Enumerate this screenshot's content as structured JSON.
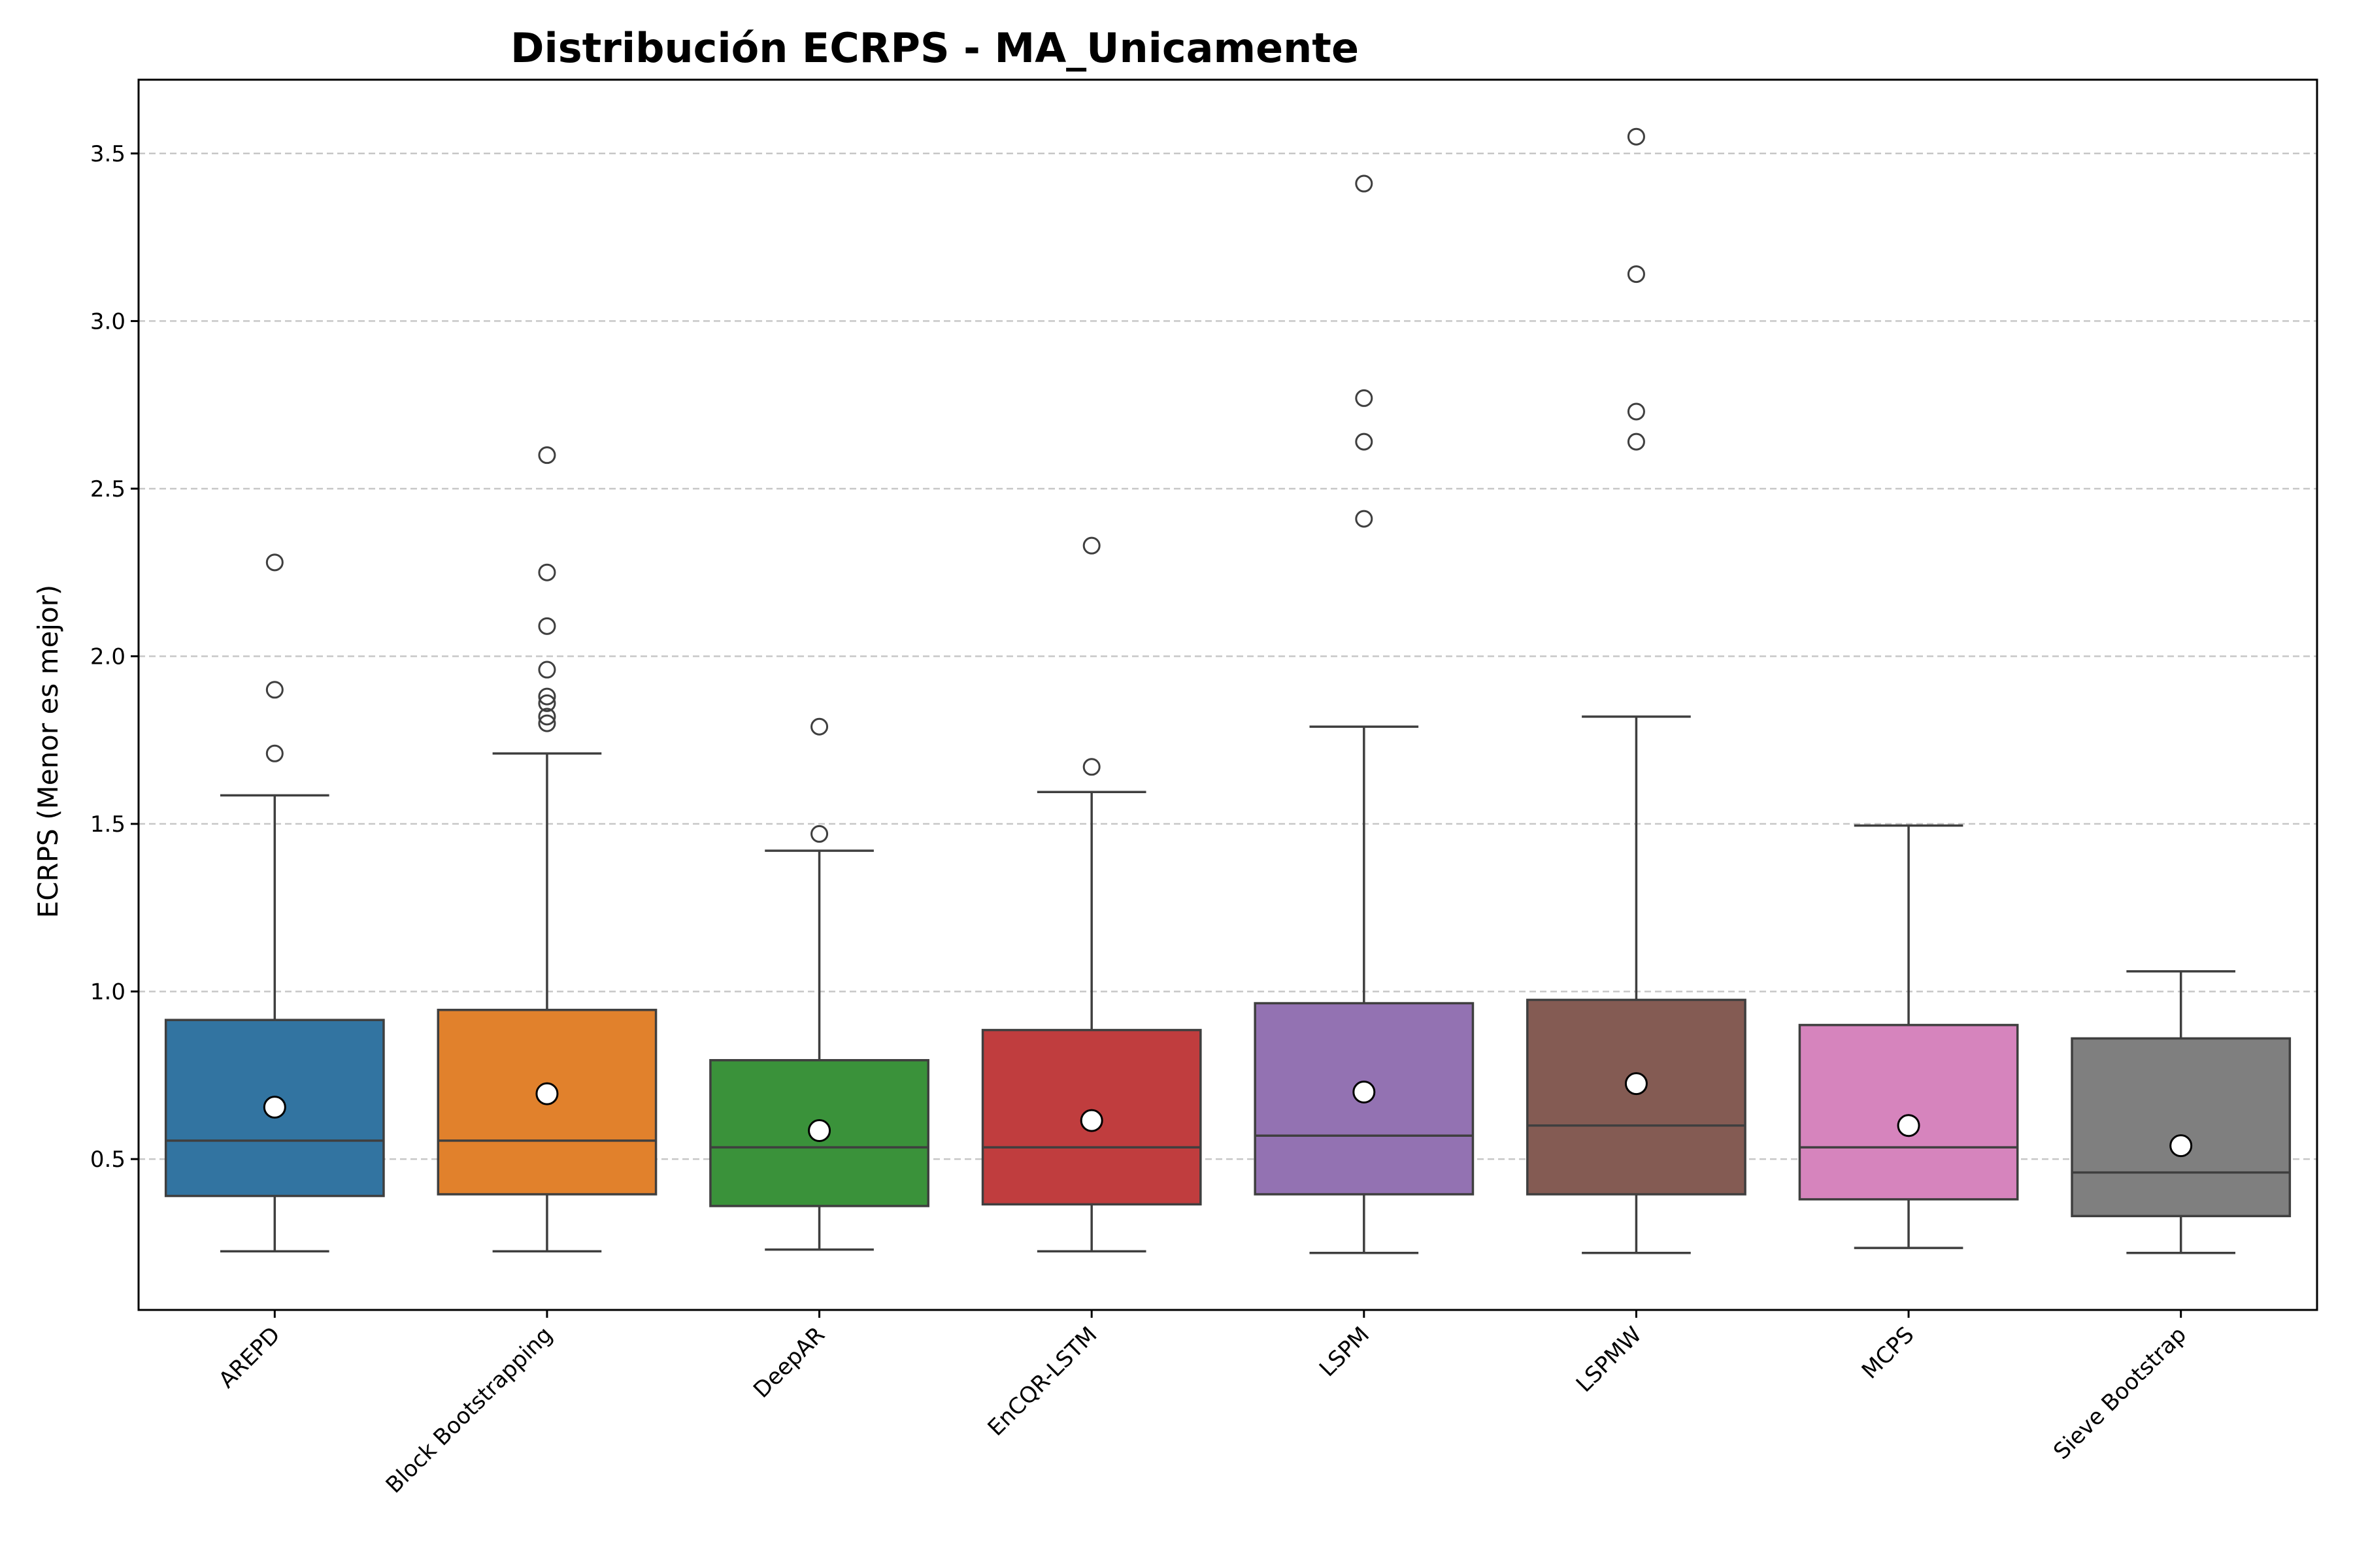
{
  "chart_data": {
    "type": "box",
    "title": "Distribución ECRPS - MA_Unicamente",
    "ylabel": "ECRPS (Menor es mejor)",
    "xlabel": "",
    "ylim": [
      0.05,
      3.72
    ],
    "yticks": [
      0.5,
      1.0,
      1.5,
      2.0,
      2.5,
      3.0,
      3.5
    ],
    "ytick_labels": [
      "0.5",
      "1.0",
      "1.5",
      "2.0",
      "2.5",
      "3.0",
      "3.5"
    ],
    "grid": "y-dashed",
    "categories": [
      "AREPD",
      "Block Bootstrapping",
      "DeepAR",
      "EnCQR-LSTM",
      "LSPM",
      "LSPMW",
      "MCPS",
      "Sieve Bootstrap"
    ],
    "series": [
      {
        "category": "AREPD",
        "color": "#3274a1",
        "whisker_low": 0.225,
        "q1": 0.39,
        "median": 0.555,
        "q3": 0.915,
        "whisker_high": 1.585,
        "mean": 0.655,
        "outliers": [
          1.71,
          1.9,
          2.28
        ]
      },
      {
        "category": "Block Bootstrapping",
        "color": "#e1812c",
        "whisker_low": 0.225,
        "q1": 0.395,
        "median": 0.555,
        "q3": 0.945,
        "whisker_high": 1.71,
        "mean": 0.695,
        "outliers": [
          1.8,
          1.82,
          1.86,
          1.88,
          1.96,
          2.09,
          2.25,
          2.6
        ]
      },
      {
        "category": "DeepAR",
        "color": "#3a923a",
        "whisker_low": 0.23,
        "q1": 0.36,
        "median": 0.535,
        "q3": 0.795,
        "whisker_high": 1.42,
        "mean": 0.585,
        "outliers": [
          1.47,
          1.79
        ]
      },
      {
        "category": "EnCQR-LSTM",
        "color": "#c03d3e",
        "whisker_low": 0.225,
        "q1": 0.365,
        "median": 0.535,
        "q3": 0.885,
        "whisker_high": 1.595,
        "mean": 0.615,
        "outliers": [
          1.67,
          2.33
        ]
      },
      {
        "category": "LSPM",
        "color": "#9372b2",
        "whisker_low": 0.22,
        "q1": 0.395,
        "median": 0.57,
        "q3": 0.965,
        "whisker_high": 1.79,
        "mean": 0.7,
        "outliers": [
          2.41,
          2.64,
          2.77,
          3.41
        ]
      },
      {
        "category": "LSPMW",
        "color": "#845b53",
        "whisker_low": 0.22,
        "q1": 0.395,
        "median": 0.6,
        "q3": 0.975,
        "whisker_high": 1.82,
        "mean": 0.725,
        "outliers": [
          2.64,
          2.73,
          3.14,
          3.55
        ]
      },
      {
        "category": "MCPS",
        "color": "#d684bd",
        "whisker_low": 0.235,
        "q1": 0.38,
        "median": 0.535,
        "q3": 0.9,
        "whisker_high": 1.495,
        "mean": 0.6,
        "outliers": []
      },
      {
        "category": "Sieve Bootstrap",
        "color": "#7f7f7f",
        "whisker_low": 0.22,
        "q1": 0.33,
        "median": 0.46,
        "q3": 0.86,
        "whisker_high": 1.06,
        "mean": 0.54,
        "outliers": []
      }
    ]
  }
}
